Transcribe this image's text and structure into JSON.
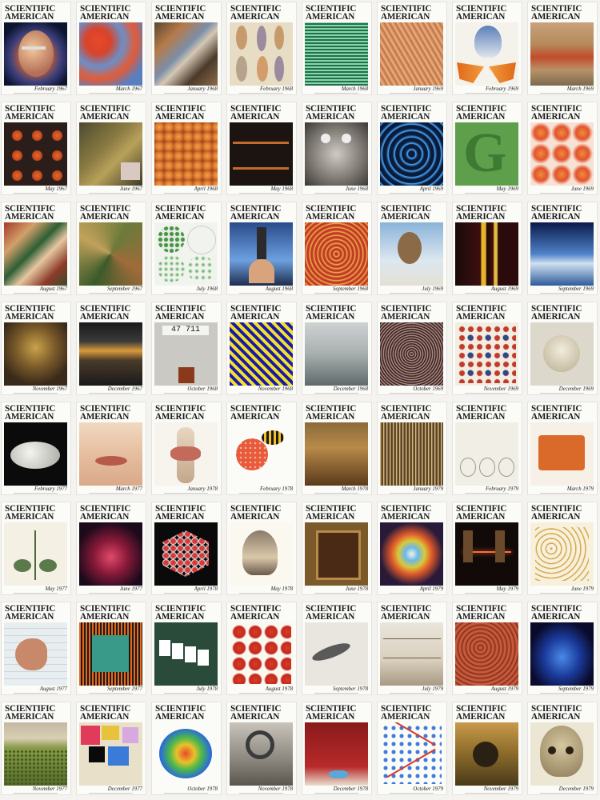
{
  "masthead": {
    "line1": "SCIENTIFIC",
    "line2": "AMERICAN"
  },
  "covers": [
    {
      "date": "February 1967",
      "art": "a-head"
    },
    {
      "date": "March 1967",
      "art": "a-earth"
    },
    {
      "date": "January 1968",
      "art": "a-marble"
    },
    {
      "date": "February 1968",
      "art": "a-figurines"
    },
    {
      "date": "March 1968",
      "art": "a-green-face"
    },
    {
      "date": "January 1969",
      "art": "a-fibers"
    },
    {
      "date": "February 1969",
      "art": "a-bluejay"
    },
    {
      "date": "March 1969",
      "art": "a-desert"
    },
    {
      "date": "May 1967",
      "art": "a-dots9"
    },
    {
      "date": "June 1967",
      "art": "a-machine"
    },
    {
      "date": "April 1968",
      "art": "a-cells"
    },
    {
      "date": "May 1968",
      "art": "a-pipes"
    },
    {
      "date": "June 1968",
      "art": "a-device"
    },
    {
      "date": "April 1969",
      "art": "a-rings"
    },
    {
      "date": "May 1969",
      "art": "a-g"
    },
    {
      "date": "June 1969",
      "art": "a-orange"
    },
    {
      "date": "August 1967",
      "art": "a-fabric"
    },
    {
      "date": "September 1967",
      "art": "a-camo"
    },
    {
      "date": "July 1968",
      "art": "a-petri"
    },
    {
      "date": "August 1968",
      "art": "a-scope"
    },
    {
      "date": "September 1968",
      "art": "a-target"
    },
    {
      "date": "July 1969",
      "art": "a-monkey"
    },
    {
      "date": "August 1969",
      "art": "a-stripes"
    },
    {
      "date": "September 1969",
      "art": "a-sky"
    },
    {
      "date": "November 1967",
      "art": "a-bronze"
    },
    {
      "date": "December 1967",
      "art": "a-lab"
    },
    {
      "date": "October 1968",
      "art": "a-counter"
    },
    {
      "date": "November 1968",
      "art": "a-diag"
    },
    {
      "date": "December 1968",
      "art": "a-fog"
    },
    {
      "date": "October 1969",
      "art": "a-moire"
    },
    {
      "date": "November 1969",
      "art": "a-dotsgrid"
    },
    {
      "date": "December 1969",
      "art": "a-skull"
    },
    {
      "date": "February 1977",
      "art": "a-egg"
    },
    {
      "date": "March 1977",
      "art": "a-mouth"
    },
    {
      "date": "January 1978",
      "art": "a-knee"
    },
    {
      "date": "February 1978",
      "art": "a-bee"
    },
    {
      "date": "March 1978",
      "art": "a-ruins"
    },
    {
      "date": "January 1979",
      "art": "a-harp"
    },
    {
      "date": "February 1979",
      "art": "a-flasks"
    },
    {
      "date": "March 1979",
      "art": "a-robot"
    },
    {
      "date": "May 1977",
      "art": "a-plant"
    },
    {
      "date": "June 1977",
      "art": "a-nebula"
    },
    {
      "date": "April 1978",
      "art": "a-snowflake"
    },
    {
      "date": "May 1978",
      "art": "a-grouse"
    },
    {
      "date": "June 1978",
      "art": "a-frame"
    },
    {
      "date": "April 1979",
      "art": "a-galaxy"
    },
    {
      "date": "May 1979",
      "art": "a-laser"
    },
    {
      "date": "June 1979",
      "art": "a-knots"
    },
    {
      "date": "August 1977",
      "art": "a-kangaroo"
    },
    {
      "date": "September 1977",
      "art": "a-chip"
    },
    {
      "date": "July 1978",
      "art": "a-cards"
    },
    {
      "date": "August 1978",
      "art": "a-tomatoes"
    },
    {
      "date": "September 1978",
      "art": "a-fish"
    },
    {
      "date": "July 1979",
      "art": "a-bridge"
    },
    {
      "date": "August 1979",
      "art": "a-brain"
    },
    {
      "date": "September 1979",
      "art": "a-blue-brain"
    },
    {
      "date": "November 1977",
      "art": "a-field"
    },
    {
      "date": "December 1977",
      "art": "a-mondrian"
    },
    {
      "date": "October 1978",
      "art": "a-heatmap"
    },
    {
      "date": "November 1978",
      "art": "a-gear"
    },
    {
      "date": "December 1978",
      "art": "a-runner"
    },
    {
      "date": "October 1979",
      "art": "a-molecules"
    },
    {
      "date": "November 1979",
      "art": "a-beetles"
    },
    {
      "date": "December 1979",
      "art": "a-bigskull"
    }
  ]
}
